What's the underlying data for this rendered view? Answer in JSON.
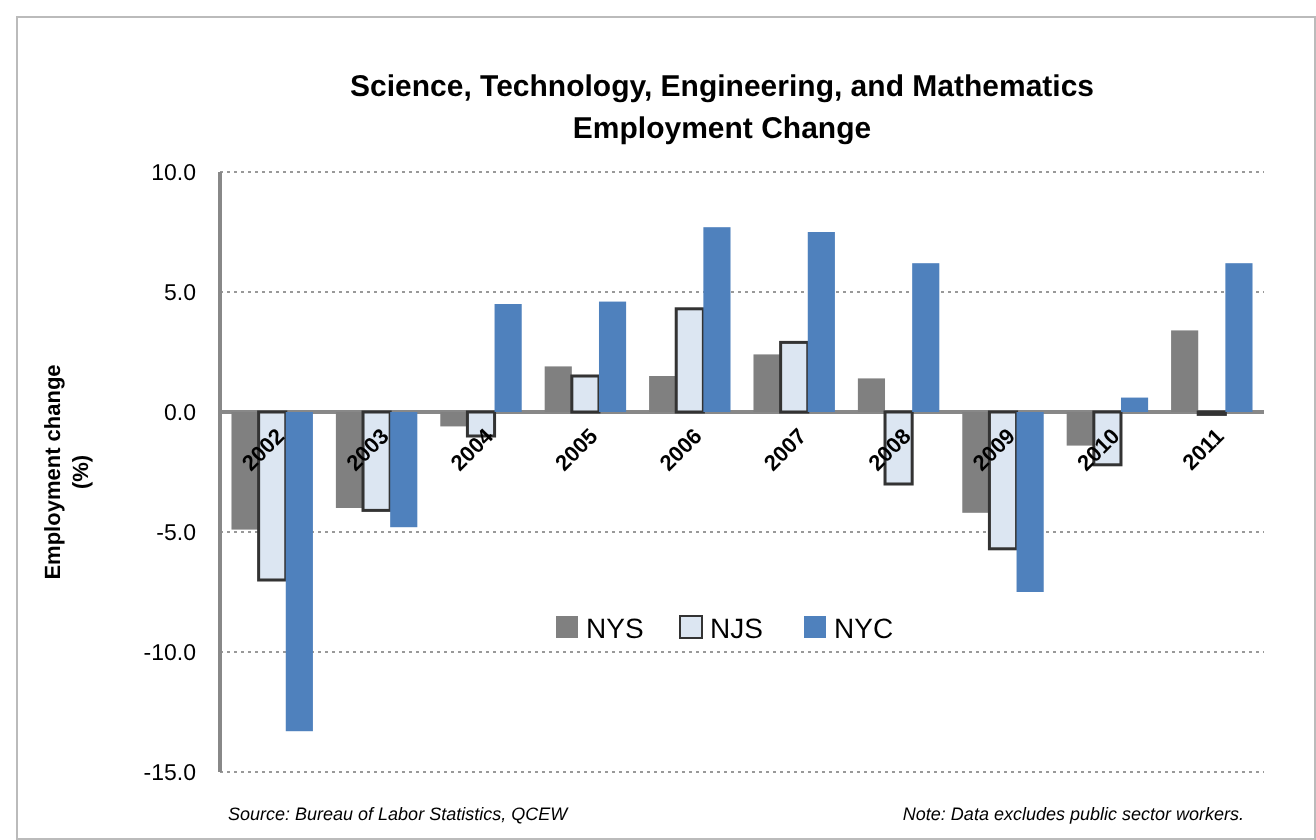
{
  "chart_data": {
    "type": "bar",
    "title": "Science, Technology, Engineering, and Mathematics\nEmployment  Change",
    "ylabel": "Employment change\n(%)",
    "categories": [
      "2002",
      "2003",
      "2004",
      "2005",
      "2006",
      "2007",
      "2008",
      "2009",
      "2010",
      "2011"
    ],
    "series": [
      {
        "name": "NYS",
        "color": "#808080",
        "values": [
          -4.9,
          -4.0,
          -0.6,
          1.9,
          1.5,
          2.4,
          1.4,
          -4.2,
          -1.4,
          3.4
        ]
      },
      {
        "name": "NJS",
        "color": "#dce6f2",
        "values": [
          -7.0,
          -4.1,
          -1.0,
          1.5,
          4.3,
          2.9,
          -3.0,
          -5.7,
          -2.2,
          -0.1
        ]
      },
      {
        "name": "NYC",
        "color": "#4f81bd",
        "values": [
          -13.3,
          -4.8,
          4.5,
          4.6,
          7.7,
          7.5,
          6.2,
          -7.5,
          0.6,
          6.2
        ]
      }
    ],
    "ylim": [
      -15,
      10
    ],
    "yticks": [
      {
        "value": -15,
        "label": "-15.0"
      },
      {
        "value": -10,
        "label": "-10.0"
      },
      {
        "value": -5,
        "label": "-5.0"
      },
      {
        "value": 0,
        "label": "0.0"
      },
      {
        "value": 5,
        "label": "5.0"
      },
      {
        "value": 10,
        "label": "10.0"
      }
    ],
    "grid": "y",
    "legend": "bottom",
    "annotations": [
      "Source: Bureau of Labor Statistics, QCEW",
      "Note: Data excludes public sector workers."
    ]
  }
}
